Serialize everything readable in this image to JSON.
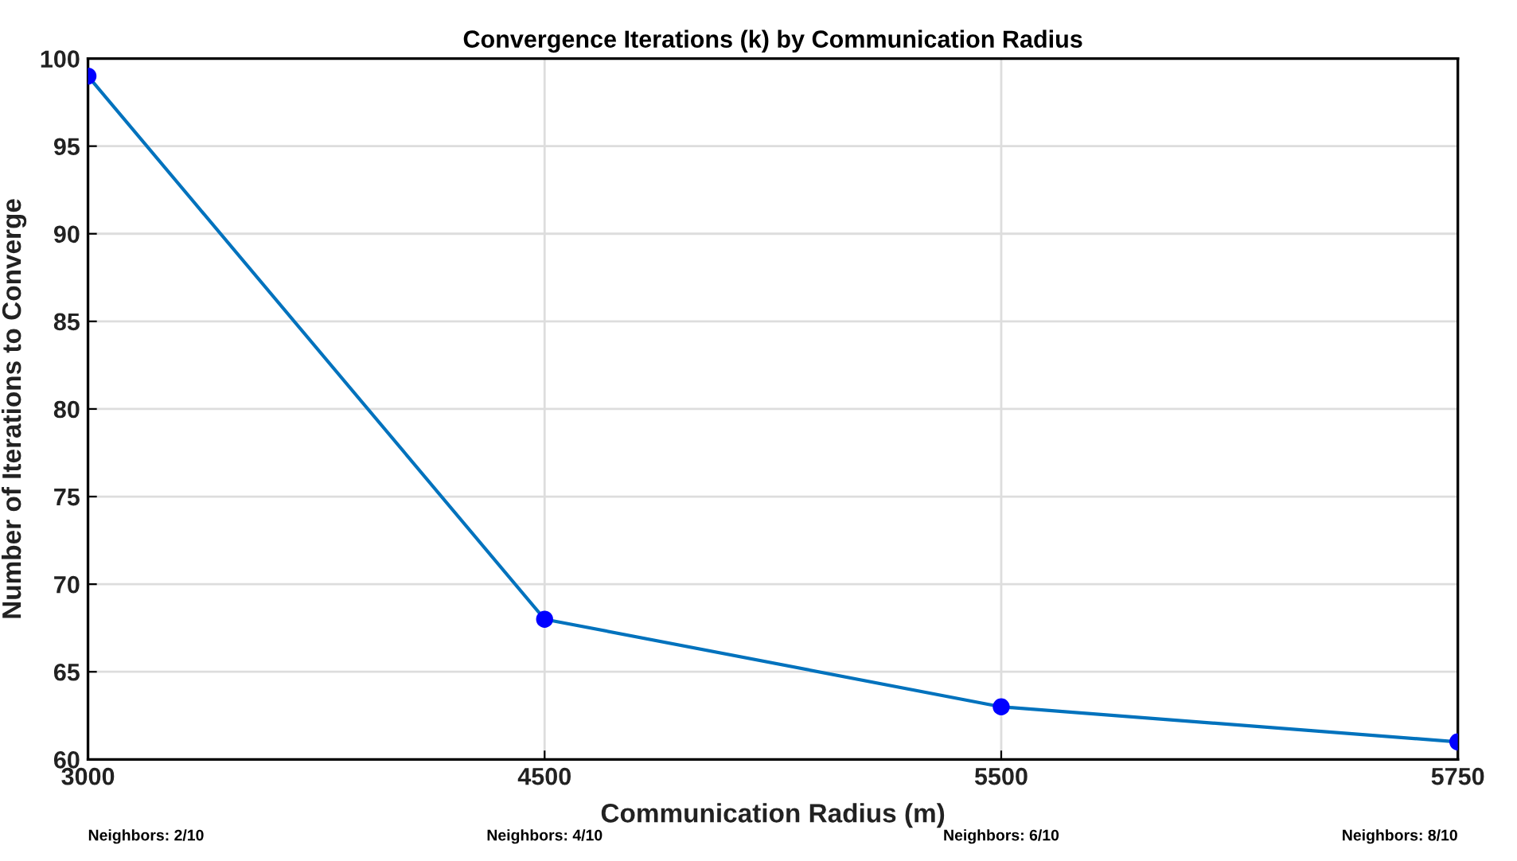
{
  "chart_data": {
    "type": "line",
    "title": "Convergence Iterations (k) by Communication Radius",
    "xlabel": "Communication Radius (m)",
    "ylabel": "Number of Iterations to Converge",
    "categories": [
      "3000",
      "4500",
      "5500",
      "5750"
    ],
    "series": [
      {
        "color": "#0072bd",
        "colors": [
          "#0000ff",
          "#0000ff",
          "#0000ff",
          "#0000ff"
        ],
        "values": [
          99,
          68,
          63,
          61
        ]
      }
    ],
    "ylim": [
      60,
      100
    ],
    "yticks": [
      60,
      65,
      70,
      75,
      80,
      85,
      90,
      95,
      100
    ],
    "grid": true,
    "marker": "circle",
    "line_style": "solid",
    "annotations": [
      "Neighbors: 2/10",
      "Neighbors: 4/10",
      "Neighbors: 6/10",
      "Neighbors: 8/10"
    ]
  }
}
